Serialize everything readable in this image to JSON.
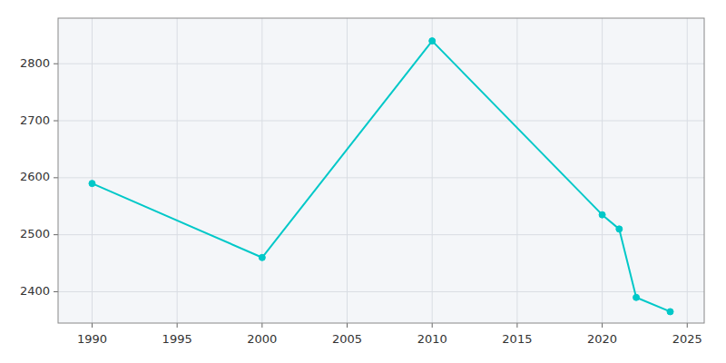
{
  "chart_data": {
    "type": "line",
    "x": [
      1990,
      2000,
      2010,
      2020,
      2021,
      2022,
      2024
    ],
    "values": [
      2590,
      2460,
      2840,
      2535,
      2510,
      2390,
      2365
    ],
    "color": "#00c8c8",
    "marker": "circle",
    "xlim": [
      1988,
      2026
    ],
    "ylim": [
      2345,
      2880
    ],
    "xticks": [
      1990,
      1995,
      2000,
      2005,
      2010,
      2015,
      2020,
      2025
    ],
    "yticks": [
      2400,
      2500,
      2600,
      2700,
      2800
    ],
    "grid": true
  }
}
